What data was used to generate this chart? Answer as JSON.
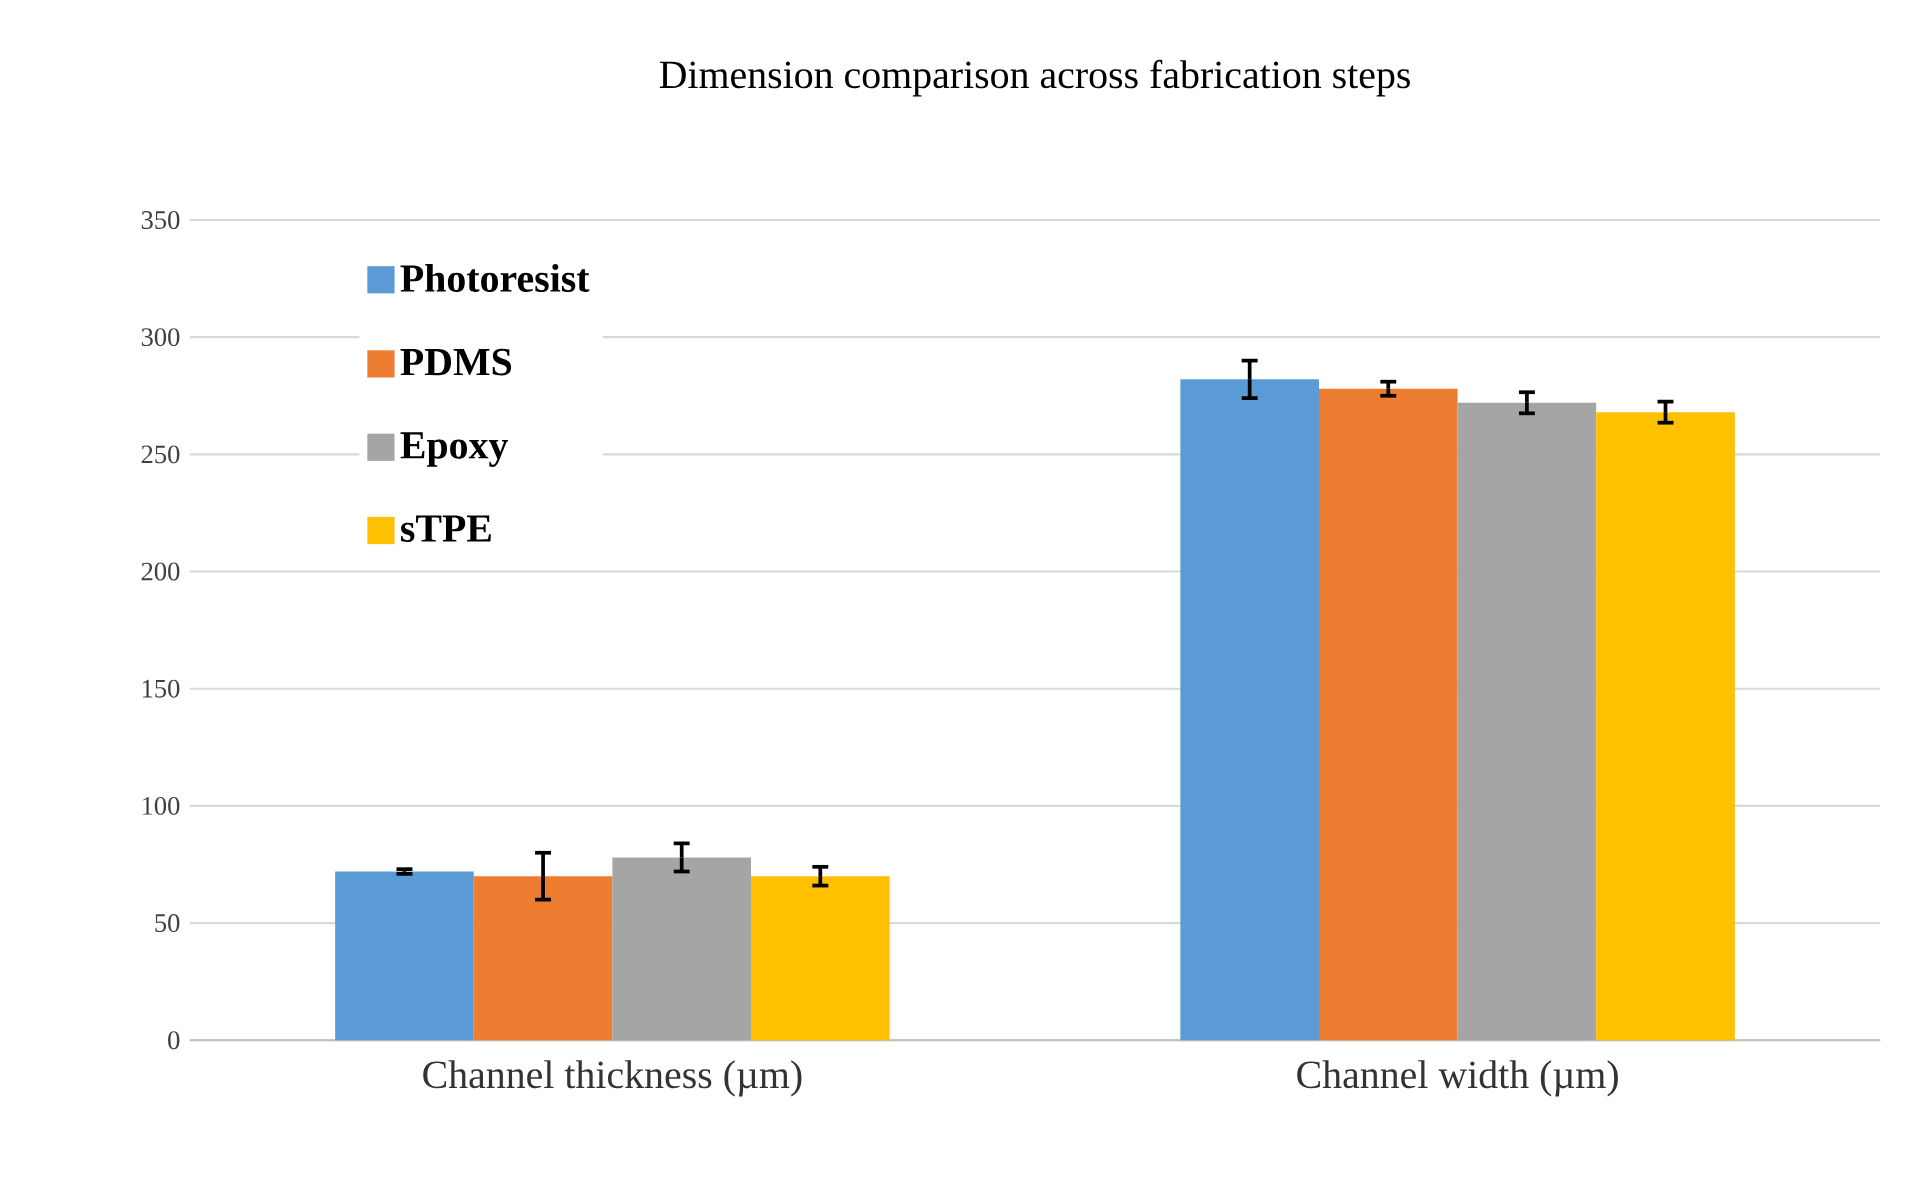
{
  "chart_data": {
    "type": "bar",
    "title": "Dimension comparison across fabrication steps",
    "categories": [
      "Channel thickness (µm)",
      "Channel width (µm)"
    ],
    "series": [
      {
        "name": "Photoresist",
        "color": "#5b9bd5",
        "values": [
          72,
          282
        ],
        "errors": [
          1,
          8
        ]
      },
      {
        "name": "PDMS",
        "color": "#ed7d31",
        "values": [
          70,
          278
        ],
        "errors": [
          10,
          3
        ]
      },
      {
        "name": "Epoxy",
        "color": "#a5a5a5",
        "values": [
          78,
          272
        ],
        "errors": [
          6,
          4.5
        ]
      },
      {
        "name": "sTPE",
        "color": "#ffc000",
        "values": [
          70,
          268
        ],
        "errors": [
          4,
          4.5
        ]
      }
    ],
    "ylim": [
      0,
      350
    ],
    "yticks": [
      0,
      50,
      100,
      150,
      200,
      250,
      300,
      350
    ],
    "grid": "y",
    "legend": "top left"
  }
}
